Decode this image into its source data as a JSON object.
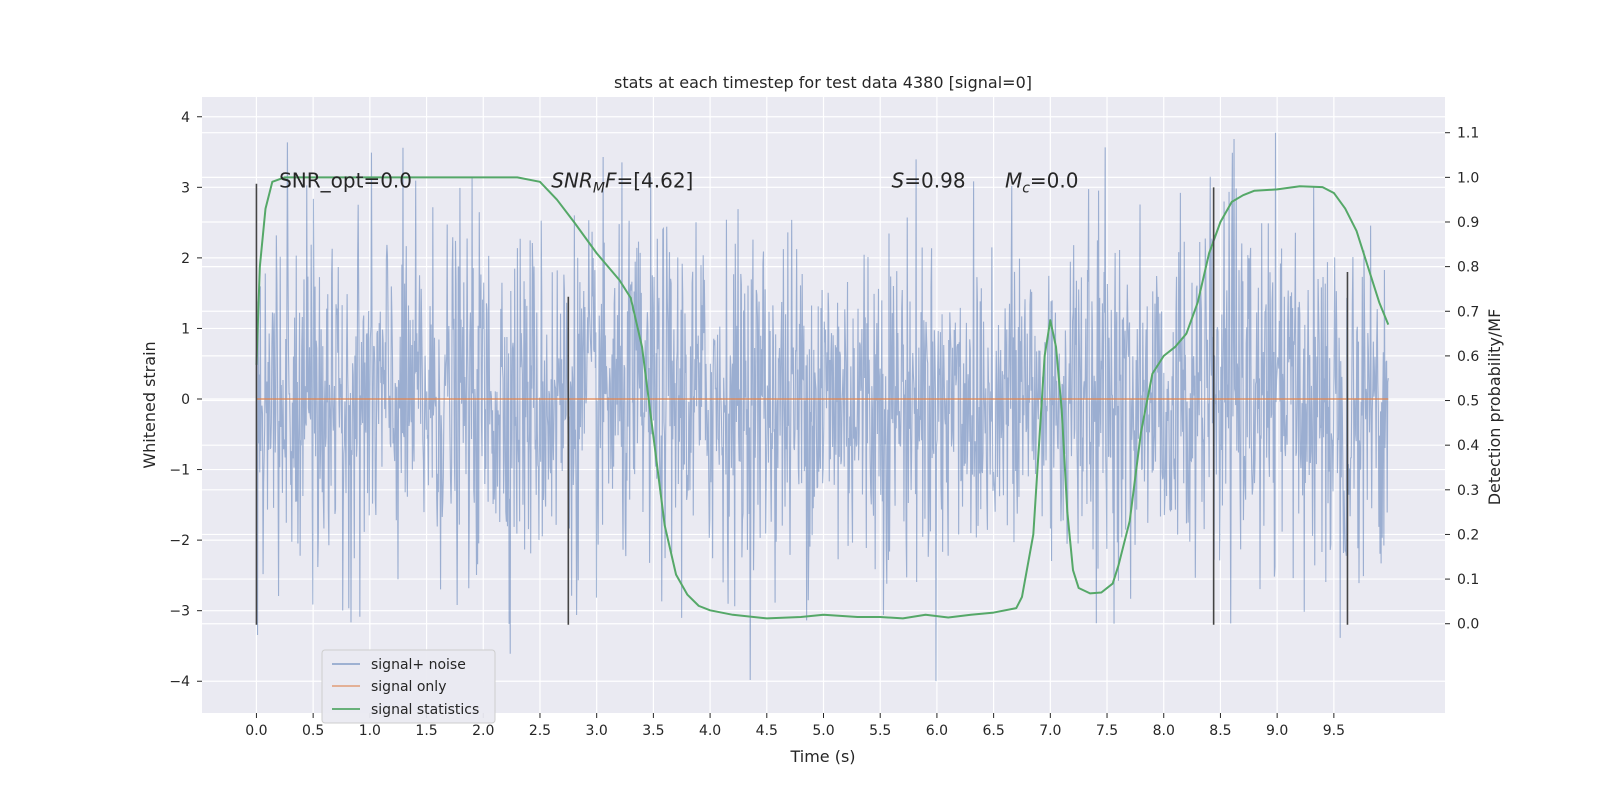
{
  "chart_data": {
    "type": "line",
    "title": "stats at each timestep for test data 4380 [signal=0]",
    "xlabel": "Time (s)",
    "ylabel": "Whitened strain",
    "ylabel_right": "Detection probability/MF",
    "xlim": [
      -0.48,
      10.48
    ],
    "ylim": [
      -4.45,
      4.28
    ],
    "ylim_right": [
      -0.2,
      1.18
    ],
    "x_ticks": [
      0.0,
      0.5,
      1.0,
      1.5,
      2.0,
      2.5,
      3.0,
      3.5,
      4.0,
      4.5,
      5.0,
      5.5,
      6.0,
      6.5,
      7.0,
      7.5,
      8.0,
      8.5,
      9.0,
      9.5
    ],
    "x_tick_labels": [
      "0.0",
      "0.5",
      "1.0",
      "1.5",
      "2.0",
      "2.5",
      "3.0",
      "3.5",
      "4.0",
      "4.5",
      "5.0",
      "5.5",
      "6.0",
      "6.5",
      "7.0",
      "7.5",
      "8.0",
      "8.5",
      "9.0",
      "9.5"
    ],
    "y_ticks": [
      -4,
      -3,
      -2,
      -1,
      0,
      1,
      2,
      3,
      4
    ],
    "y_tick_labels": [
      "−4",
      "−3",
      "−2",
      "−1",
      "0",
      "1",
      "2",
      "3",
      "4"
    ],
    "y_ticks_right": [
      0.0,
      0.1,
      0.2,
      0.3,
      0.4,
      0.5,
      0.6,
      0.7,
      0.8,
      0.9,
      1.0,
      1.1
    ],
    "y_tick_labels_right": [
      "0.0",
      "0.1",
      "0.2",
      "0.3",
      "0.4",
      "0.5",
      "0.6",
      "0.7",
      "0.8",
      "0.9",
      "1.0",
      "1.1"
    ],
    "grid": true,
    "legend_position": "lower-left",
    "series": [
      {
        "name": "signal+ noise",
        "axis": "left",
        "style": "noise",
        "color": "#4c72b0",
        "x_range": [
          0.0,
          9.98
        ],
        "samples": 2048,
        "envelope_typical": [
          -1.9,
          1.9
        ],
        "extrema_range": [
          -4.0,
          3.9
        ]
      },
      {
        "name": "signal only",
        "axis": "left",
        "color": "#dd8452",
        "x": [
          0.0,
          9.98
        ],
        "y": [
          0.0,
          0.0
        ]
      },
      {
        "name": "signal statistics",
        "axis": "right",
        "color": "#55a868",
        "x": [
          0.0,
          0.03,
          0.08,
          0.14,
          0.25,
          0.5,
          1.0,
          1.5,
          2.0,
          2.3,
          2.5,
          2.65,
          2.8,
          3.0,
          3.1,
          3.2,
          3.3,
          3.4,
          3.5,
          3.6,
          3.7,
          3.8,
          3.9,
          4.0,
          4.2,
          4.5,
          4.8,
          5.0,
          5.3,
          5.5,
          5.7,
          5.9,
          6.1,
          6.3,
          6.5,
          6.7,
          6.75,
          6.85,
          6.9,
          6.95,
          7.0,
          7.05,
          7.1,
          7.15,
          7.2,
          7.25,
          7.35,
          7.45,
          7.55,
          7.6,
          7.7,
          7.8,
          7.9,
          8.0,
          8.1,
          8.2,
          8.3,
          8.4,
          8.5,
          8.6,
          8.7,
          8.8,
          9.0,
          9.2,
          9.4,
          9.5,
          9.6,
          9.7,
          9.8,
          9.9,
          9.98
        ],
        "y": [
          0.58,
          0.8,
          0.93,
          0.99,
          1.0,
          1.0,
          1.0,
          1.0,
          1.0,
          1.0,
          0.99,
          0.95,
          0.9,
          0.83,
          0.8,
          0.77,
          0.73,
          0.62,
          0.42,
          0.22,
          0.11,
          0.065,
          0.04,
          0.03,
          0.02,
          0.012,
          0.015,
          0.02,
          0.015,
          0.015,
          0.012,
          0.02,
          0.014,
          0.02,
          0.025,
          0.035,
          0.06,
          0.2,
          0.4,
          0.6,
          0.68,
          0.62,
          0.48,
          0.25,
          0.12,
          0.08,
          0.068,
          0.07,
          0.09,
          0.13,
          0.23,
          0.43,
          0.56,
          0.6,
          0.62,
          0.65,
          0.72,
          0.83,
          0.9,
          0.945,
          0.96,
          0.97,
          0.973,
          0.98,
          0.978,
          0.965,
          0.93,
          0.88,
          0.8,
          0.72,
          0.67
        ]
      }
    ],
    "vertical_lines": [
      {
        "x": 0.0,
        "y0": -3.2,
        "y1": 3.05,
        "color": "#444444"
      },
      {
        "x": 2.75,
        "y0": -3.2,
        "y1": 1.45,
        "color": "#444444"
      },
      {
        "x": 8.44,
        "y0": -3.2,
        "y1": 3.0,
        "color": "#444444"
      },
      {
        "x": 9.62,
        "y0": -3.2,
        "y1": 1.8,
        "color": "#444444"
      }
    ],
    "annotations": [
      {
        "name": "annot-snr-opt",
        "kind": "plain",
        "text": "SNR_opt=0.0",
        "x": 0.2,
        "y": 3.0
      },
      {
        "name": "annot-snr-mf",
        "kind": "snrmf",
        "text": "=[4.62]",
        "x": 2.6,
        "y": 3.0
      },
      {
        "name": "annot-s",
        "kind": "s",
        "text": "=0.98",
        "x": 5.6,
        "y": 3.0
      },
      {
        "name": "annot-mc",
        "kind": "mc",
        "text": "=0.0",
        "x": 6.6,
        "y": 3.0
      }
    ]
  }
}
